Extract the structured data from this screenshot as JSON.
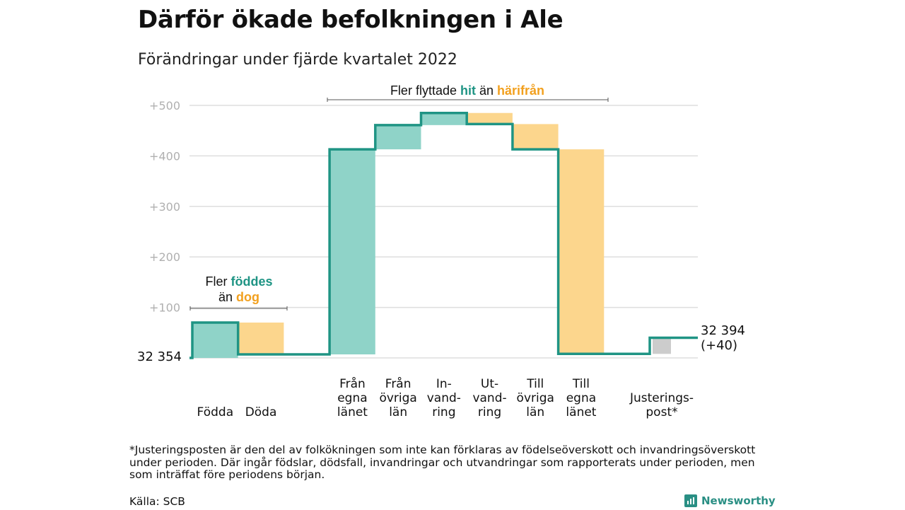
{
  "title": "Därför ökade befolkningen i Ale",
  "subtitle": "Förändringar under fjärde kvartalet 2022",
  "footnote_lines": [
    "*Justeringsposten är den del av folkökningen som inte kan förklaras av födelseöverskott och invandringsöverskott",
    "under perioden. Där ingår födslar, dödsfall, invandringar och utvandringar som rapporterats under perioden, men",
    "som inträffat före periodens början."
  ],
  "source": "Källa: SCB",
  "brand": "Newsworthy",
  "colors": {
    "increase": "#8fd3c8",
    "decrease": "#fcd68d",
    "adjustment": "#cccccc",
    "line": "#1f9484",
    "highlight_increase": "#1f9484",
    "highlight_decrease": "#f2a01e",
    "axis_text": "#b0b0b0",
    "grid": "#dedede"
  },
  "chart_data": {
    "type": "waterfall",
    "start_label": "32 354",
    "end_label": [
      "32 394",
      "(+40)"
    ],
    "ylim": [
      0,
      520
    ],
    "yticks": [
      {
        "value": 100,
        "label": "+100"
      },
      {
        "value": 200,
        "label": "+200"
      },
      {
        "value": 300,
        "label": "+300"
      },
      {
        "value": 400,
        "label": "+400"
      },
      {
        "value": 500,
        "label": "+500"
      }
    ],
    "steps": [
      {
        "label": [
          "Födda"
        ],
        "kind": "increase",
        "from": 0,
        "to": 70
      },
      {
        "label": [
          "Döda"
        ],
        "kind": "decrease",
        "from": 70,
        "to": 7
      },
      {
        "label": [],
        "kind": "gap",
        "from": 7,
        "to": 7
      },
      {
        "label": [
          "Från",
          "egna",
          "länet"
        ],
        "kind": "increase",
        "from": 7,
        "to": 413
      },
      {
        "label": [
          "Från",
          "övriga",
          "län"
        ],
        "kind": "increase",
        "from": 413,
        "to": 461
      },
      {
        "label": [
          "In-",
          "vand-",
          "ring"
        ],
        "kind": "increase",
        "from": 461,
        "to": 485
      },
      {
        "label": [
          "Ut-",
          "vand-",
          "ring"
        ],
        "kind": "decrease",
        "from": 485,
        "to": 463
      },
      {
        "label": [
          "Till",
          "övriga",
          "län"
        ],
        "kind": "decrease",
        "from": 463,
        "to": 413
      },
      {
        "label": [
          "Till",
          "egna",
          "länet"
        ],
        "kind": "decrease",
        "from": 413,
        "to": 8
      },
      {
        "label": [],
        "kind": "gap",
        "from": 8,
        "to": 8
      },
      {
        "label": [
          "Justerings-",
          "post*"
        ],
        "kind": "adjustment",
        "from": 8,
        "to": 40
      }
    ],
    "annotations": [
      {
        "lines": [
          [
            {
              "text": "Fler ",
              "style": "plain"
            },
            {
              "text": "föddes",
              "style": "increase"
            }
          ],
          [
            {
              "text": "än ",
              "style": "plain"
            },
            {
              "text": "dog",
              "style": "decrease"
            }
          ]
        ],
        "span": [
          0,
          1
        ]
      },
      {
        "lines": [
          [
            {
              "text": "Fler flyttade ",
              "style": "plain"
            },
            {
              "text": "hit",
              "style": "increase"
            },
            {
              "text": " än ",
              "style": "plain"
            },
            {
              "text": "härifrån",
              "style": "decrease"
            }
          ]
        ],
        "span": [
          3,
          8
        ]
      }
    ]
  }
}
